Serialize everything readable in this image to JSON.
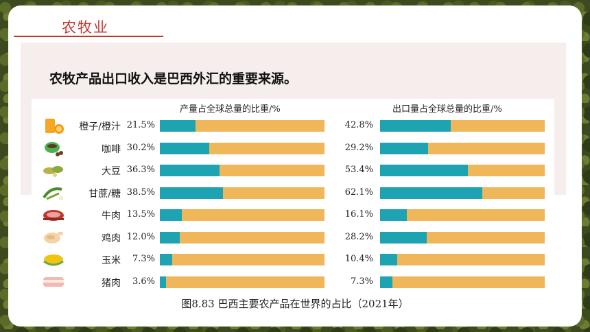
{
  "header": {
    "section_title": "农牧业"
  },
  "headline": "农牧产品出口收入是巴西外汇的重要来源。",
  "chart_data": {
    "type": "bar",
    "orientation": "horizontal",
    "categories": [
      "橙子/橙汁",
      "咖啡",
      "大豆",
      "甘蔗/糖",
      "牛肉",
      "鸡肉",
      "玉米",
      "猪肉"
    ],
    "series": [
      {
        "name": "产量占全球总量的比重/%",
        "values": [
          21.5,
          30.2,
          36.3,
          38.5,
          13.5,
          12.0,
          7.3,
          3.6
        ],
        "labels": [
          "21.5%",
          "30.2%",
          "36.3%",
          "38.5%",
          "13.5%",
          "12.0%",
          "7.3%",
          "3.6%"
        ]
      },
      {
        "name": "出口量占全球总量的比重/%",
        "values": [
          42.8,
          29.2,
          53.4,
          62.1,
          16.1,
          28.2,
          10.4,
          7.3
        ],
        "labels": [
          "42.8%",
          "29.2%",
          "53.4%",
          "62.1%",
          "16.1%",
          "28.2%",
          "10.4%",
          "7.3%"
        ]
      }
    ],
    "xlim": [
      0,
      100
    ],
    "colors": {
      "share": "#1ea3b3",
      "remainder": "#f0b65a"
    },
    "icons": [
      "orange-juice-icon",
      "coffee-cup-icon",
      "soybean-icon",
      "sugarcane-icon",
      "beef-icon",
      "chicken-icon",
      "corn-icon",
      "pork-icon"
    ],
    "caption": "图8.83 巴西主要农产品在世界的占比（2021年）"
  }
}
